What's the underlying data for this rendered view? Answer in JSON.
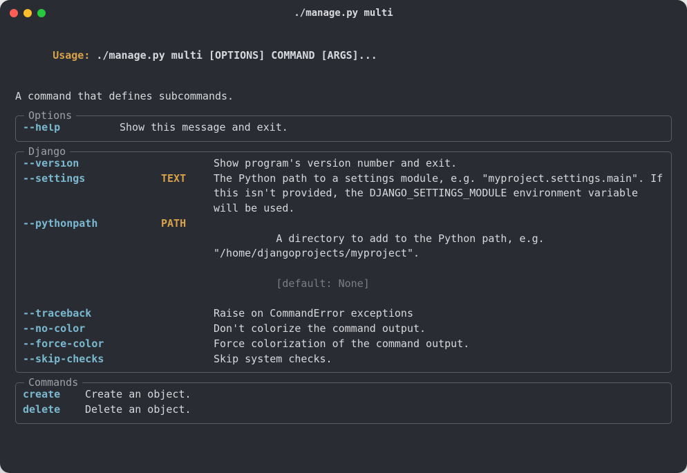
{
  "window": {
    "title": "./manage.py multi",
    "dot_colors": [
      "#ff5f56",
      "#ffbd2e",
      "#27c93f"
    ],
    "background": "#292c33",
    "border_radius": 14
  },
  "colors": {
    "text": "#d7d9dd",
    "accent_yellow": "#d7a24a",
    "accent_cyan": "#7bb9d1",
    "muted": "#9ea1a8",
    "dim": "#7b7e85",
    "panel_border": "#5a5d64"
  },
  "usage": {
    "label": "Usage:",
    "command": "./manage.py multi [OPTIONS] COMMAND [ARGS]..."
  },
  "description": "A command that defines subcommands.",
  "panels": {
    "options": {
      "title": "Options",
      "rows": [
        {
          "flag": "--help",
          "meta": "",
          "desc": "Show this message and exit."
        }
      ]
    },
    "django": {
      "title": "Django",
      "rows": [
        {
          "flag": "--version",
          "meta": "",
          "desc": "Show program's version number and exit."
        },
        {
          "flag": "--settings",
          "meta": "TEXT",
          "desc": "The Python path to a settings module, e.g. \"myproject.settings.main\". If this isn't provided, the DJANGO_SETTINGS_MODULE environment variable will be used."
        },
        {
          "flag": "--pythonpath",
          "meta": "PATH",
          "desc": "A directory to add to the Python path, e.g. \"/home/djangoprojects/myproject\".",
          "default": "[default: None]"
        },
        {
          "flag": "--traceback",
          "meta": "",
          "desc": "Raise on CommandError exceptions"
        },
        {
          "flag": "--no-color",
          "meta": "",
          "desc": "Don't colorize the command output."
        },
        {
          "flag": "--force-color",
          "meta": "",
          "desc": "Force colorization of the command output."
        },
        {
          "flag": "--skip-checks",
          "meta": "",
          "desc": "Skip system checks."
        }
      ]
    },
    "commands": {
      "title": "Commands",
      "rows": [
        {
          "name": "create",
          "desc": "Create an object."
        },
        {
          "name": "delete",
          "desc": "Delete an object."
        }
      ]
    }
  }
}
